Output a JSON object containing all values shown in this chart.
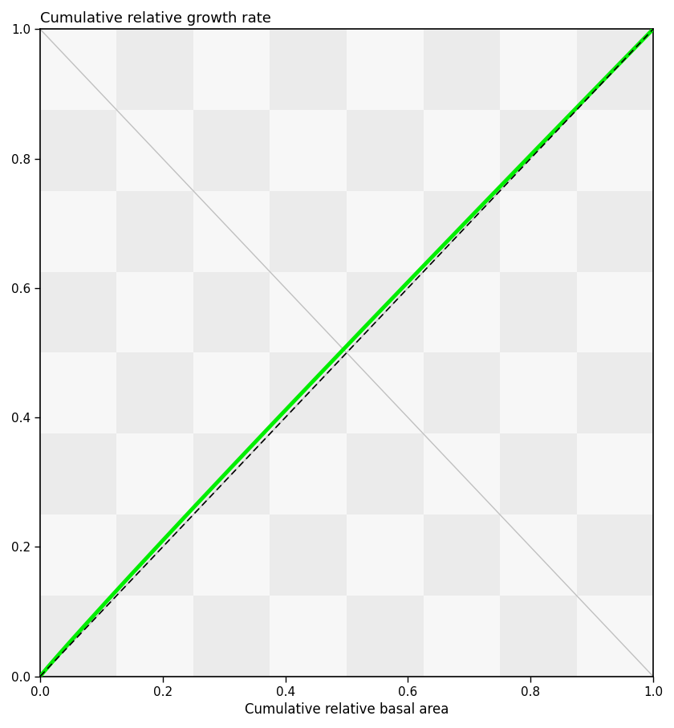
{
  "title": "Cumulative relative growth rate",
  "xlabel": "Cumulative relative basal area",
  "ylabel": "",
  "xlim": [
    0.0,
    1.0
  ],
  "ylim": [
    0.0,
    1.0
  ],
  "xticks": [
    0.0,
    0.2,
    0.4,
    0.6,
    0.8,
    1.0
  ],
  "yticks": [
    0.0,
    0.2,
    0.4,
    0.6,
    0.8,
    1.0
  ],
  "diagonal_color": "#c0c0c0",
  "anti_diagonal_color": "#c0c0c0",
  "green_line_color": "#00ee00",
  "dashed_line_color": "#000000",
  "checkered_color1": "#ebebeb",
  "checkered_color2": "#f7f7f7",
  "title_fontsize": 13,
  "label_fontsize": 12,
  "tick_fontsize": 11,
  "green_power": 0.97,
  "green_linewidth": 3.5,
  "dashed_linewidth": 1.2,
  "diag_linewidth": 1.0,
  "n_squares": 8
}
